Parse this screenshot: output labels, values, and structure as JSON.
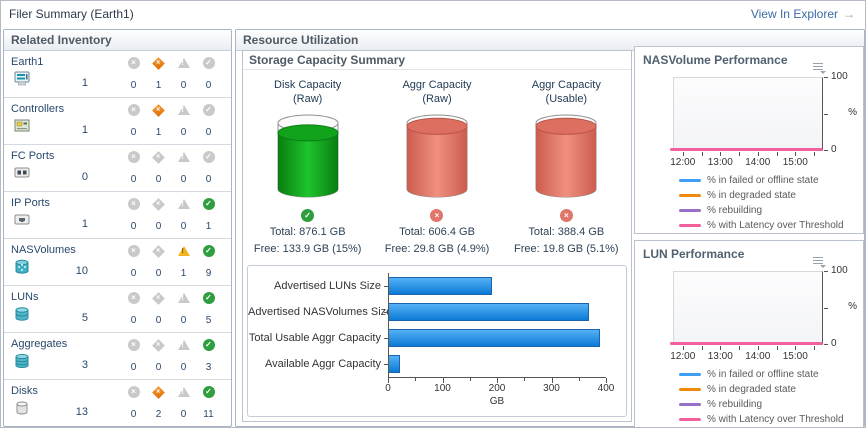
{
  "titlebar": {
    "title": "Filer Summary (Earth1)",
    "explorer_link": "View In Explorer"
  },
  "icons": {
    "down": "×",
    "critical": "×",
    "warning": "!",
    "up": "✓",
    "explorer_arrow": "→"
  },
  "inventory": {
    "header": "Related Inventory",
    "status_types": [
      "down",
      "critical",
      "warning",
      "up"
    ],
    "status_colors": {
      "down": "#c94a3e",
      "critical": "#ee7d12",
      "warning": "#f5b31e",
      "up": "#2f9e3f",
      "inactive": "#c9c9c9"
    },
    "rows": [
      {
        "name": "Earth1",
        "icon": "filer-server-icon",
        "count": "1",
        "counts": [
          "0",
          "1",
          "0",
          "0"
        ]
      },
      {
        "name": "Controllers",
        "icon": "controller-icon",
        "count": "1",
        "counts": [
          "0",
          "1",
          "0",
          "0"
        ]
      },
      {
        "name": "FC Ports",
        "icon": "fc-port-icon",
        "count": "0",
        "counts": [
          "0",
          "0",
          "0",
          "0"
        ]
      },
      {
        "name": "IP Ports",
        "icon": "ip-port-icon",
        "count": "1",
        "counts": [
          "0",
          "0",
          "0",
          "1"
        ]
      },
      {
        "name": "NASVolumes",
        "icon": "nasvolume-icon",
        "count": "10",
        "counts": [
          "0",
          "0",
          "1",
          "9"
        ]
      },
      {
        "name": "LUNs",
        "icon": "lun-icon",
        "count": "5",
        "counts": [
          "0",
          "0",
          "0",
          "5"
        ]
      },
      {
        "name": "Aggregates",
        "icon": "aggregate-icon",
        "count": "3",
        "counts": [
          "0",
          "0",
          "0",
          "3"
        ]
      },
      {
        "name": "Disks",
        "icon": "disk-icon",
        "count": "13",
        "counts": [
          "0",
          "2",
          "0",
          "11"
        ]
      }
    ]
  },
  "resource": {
    "header": "Resource Utilization",
    "capacity": {
      "header": "Storage Capacity Summary",
      "gauges": [
        {
          "label": "Disk Capacity",
          "sublabel": "(Raw)",
          "total": "Total: 876.1 GB",
          "free": "Free: 133.9 GB (15%)",
          "status": "up",
          "fill": "green",
          "color": "#17b024",
          "fill_pct": 85
        },
        {
          "label": "Aggr Capacity",
          "sublabel": "(Raw)",
          "total": "Total: 606.4 GB",
          "free": "Free: 29.8 GB (4.9%)",
          "status": "down",
          "fill": "red",
          "color": "#e4705f",
          "fill_pct": 95
        },
        {
          "label": "Aggr Capacity",
          "sublabel": "(Usable)",
          "total": "Total: 388.4 GB",
          "free": "Free: 19.8 GB (5.1%)",
          "status": "down",
          "fill": "red",
          "color": "#e4705f",
          "fill_pct": 95
        }
      ],
      "chart_data": {
        "type": "bar",
        "orientation": "horizontal",
        "categories": [
          "Advertised LUNs Size",
          "Advertised NASVolumes Size",
          "Total Usable Aggr Capacity",
          "Available Aggr Capacity"
        ],
        "values": [
          190,
          368,
          388.4,
          19.8
        ],
        "xlabel": "GB",
        "xlim": [
          0,
          400
        ],
        "xticks": [
          "0",
          "100",
          "200",
          "300",
          "400"
        ],
        "bar_color": "#1b8ae6",
        "grid": false
      }
    },
    "perf": {
      "panels": [
        {
          "title": "NASVolume Performance"
        },
        {
          "title": "LUN Performance"
        }
      ],
      "ylabel": "%",
      "yticks": [
        "100",
        "0"
      ],
      "xticks": [
        "12:00",
        "13:00",
        "14:00",
        "15:00"
      ],
      "legend": [
        {
          "label": "% in failed or offline state",
          "color": "#3da0f2"
        },
        {
          "label": "% in degraded state",
          "color": "#ef8b0c"
        },
        {
          "label": "% rebuilding",
          "color": "#9770c9"
        },
        {
          "label": "% with Latency over Threshold",
          "color": "#f2609e"
        }
      ],
      "chart_data": {
        "type": "line",
        "x": [
          "12:00",
          "13:00",
          "14:00",
          "15:00"
        ],
        "ylim": [
          0,
          100
        ],
        "legend_position": "bottom",
        "series": [
          {
            "name": "% in failed or offline state",
            "values": [
              0,
              0,
              0,
              0
            ]
          },
          {
            "name": "% in degraded state",
            "values": [
              0,
              0,
              0,
              0
            ]
          },
          {
            "name": "% rebuilding",
            "values": [
              0,
              0,
              0,
              0
            ]
          },
          {
            "name": "% with Latency over Threshold",
            "values": [
              0,
              0,
              0,
              0
            ]
          }
        ]
      }
    }
  }
}
